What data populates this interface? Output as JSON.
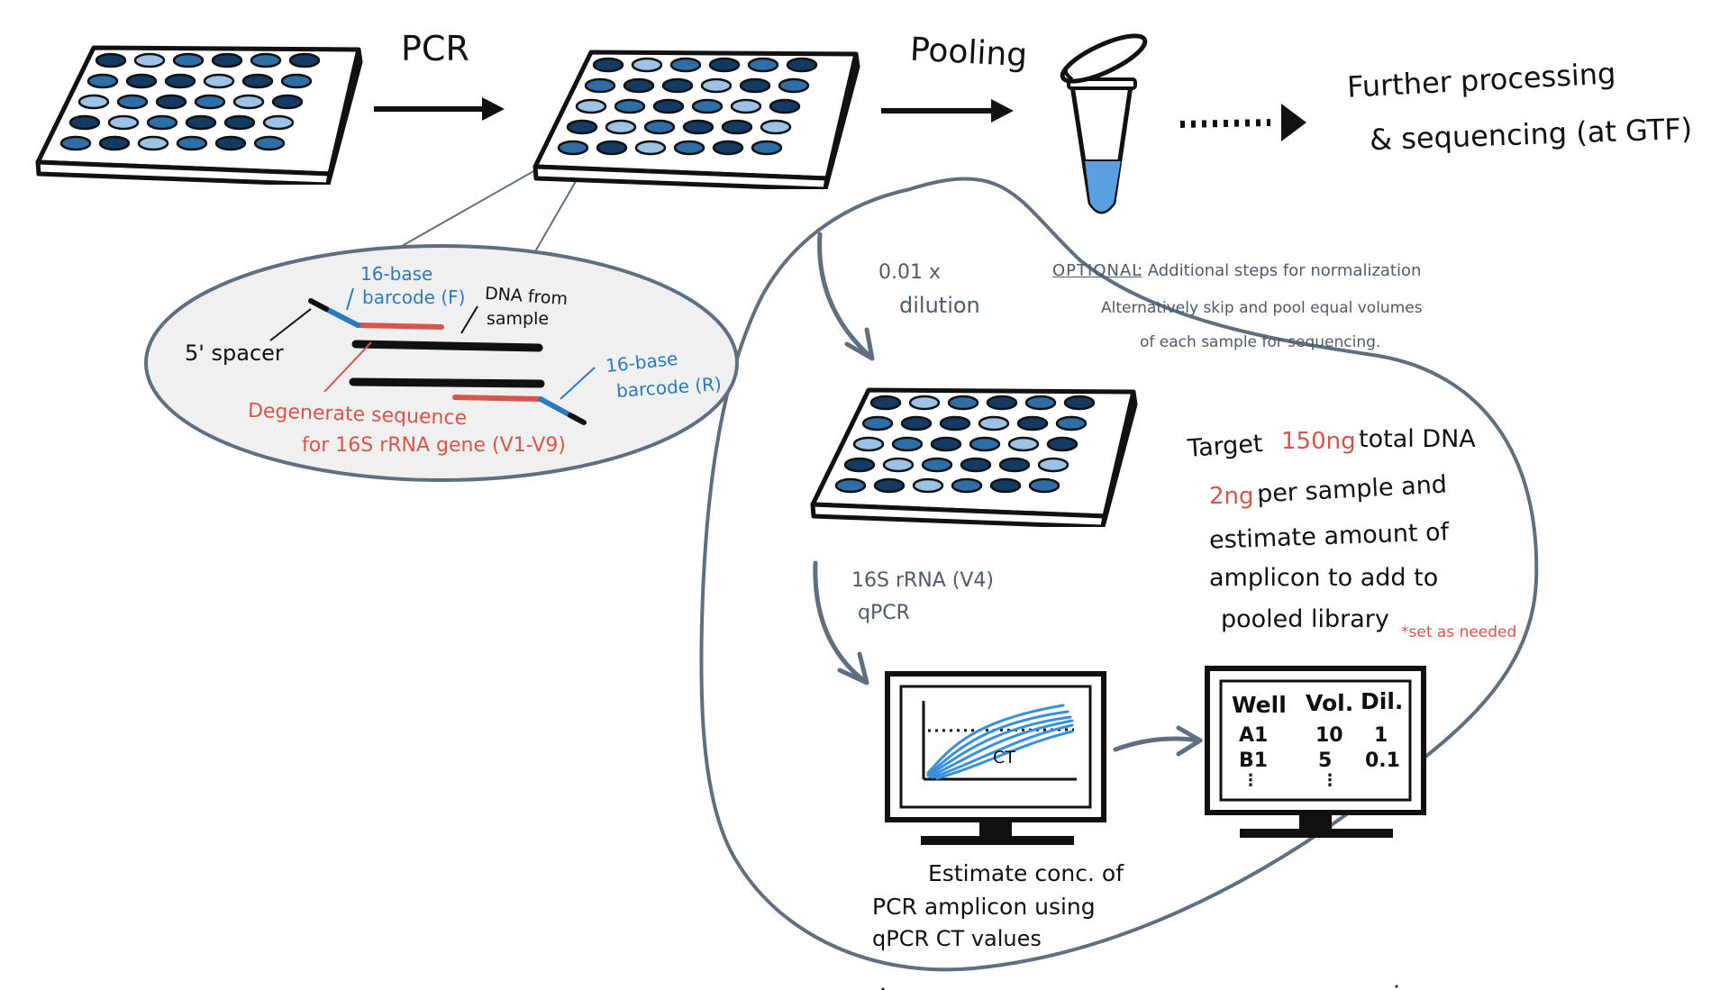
{
  "colors": {
    "ink": "#111111",
    "blob_outline": "#5f6f7f",
    "well_dark": "#123a63",
    "well_mid": "#2e6ea6",
    "well_light": "#9cc3e6",
    "barcode_blue": "#2b7ac0",
    "degenerate_red": "#d8554b",
    "tube_liquid": "#5aa0e0",
    "curve_blue": "#3b8fd9"
  },
  "steps": {
    "pcr": "PCR",
    "pooling": "Pooling",
    "further_1": "Further processing",
    "further_2": "& sequencing (at GTF)"
  },
  "primer": {
    "barcode_f_1": "16-base",
    "barcode_f_2": "barcode (F)",
    "dna_1": "DNA from",
    "dna_2": "sample",
    "spacer": "5' spacer",
    "barcode_r_1": "16-base",
    "barcode_r_2": "barcode (R)",
    "degenerate_1": "Degenerate sequence",
    "degenerate_2": "for 16S rRNA gene (V1-V9)"
  },
  "optional": {
    "heading": "OPTIONAL",
    "line1": ": Additional steps for normalization",
    "line2": "Alternatively skip and pool equal volumes",
    "line3": "of each sample for sequencing."
  },
  "dilution": {
    "line1": "0.01 x",
    "line2": "dilution"
  },
  "qpcr": {
    "line1": "16S rRNA (V4)",
    "line2": "qPCR"
  },
  "target": {
    "t1": "Target",
    "t1_amount": "150ng",
    "t1_rest": "total DNA",
    "t2_amount": "2ng",
    "t2_rest": "per sample and",
    "t3": "estimate amount of",
    "t4": "amplicon to add to",
    "t5": "pooled library",
    "note": "*set as needed"
  },
  "monitor_chart": {
    "ct_label": "CT"
  },
  "table": {
    "headers": [
      "Well",
      "Vol.",
      "Dil."
    ],
    "rows": [
      [
        "A1",
        "10",
        "1"
      ],
      [
        "B1",
        "5",
        "0.1"
      ]
    ],
    "more": [
      "⋮",
      "⋮",
      ""
    ]
  },
  "estimate": {
    "line1": "Estimate conc. of",
    "line2": "PCR amplicon using",
    "line3": "qPCR CT values"
  }
}
